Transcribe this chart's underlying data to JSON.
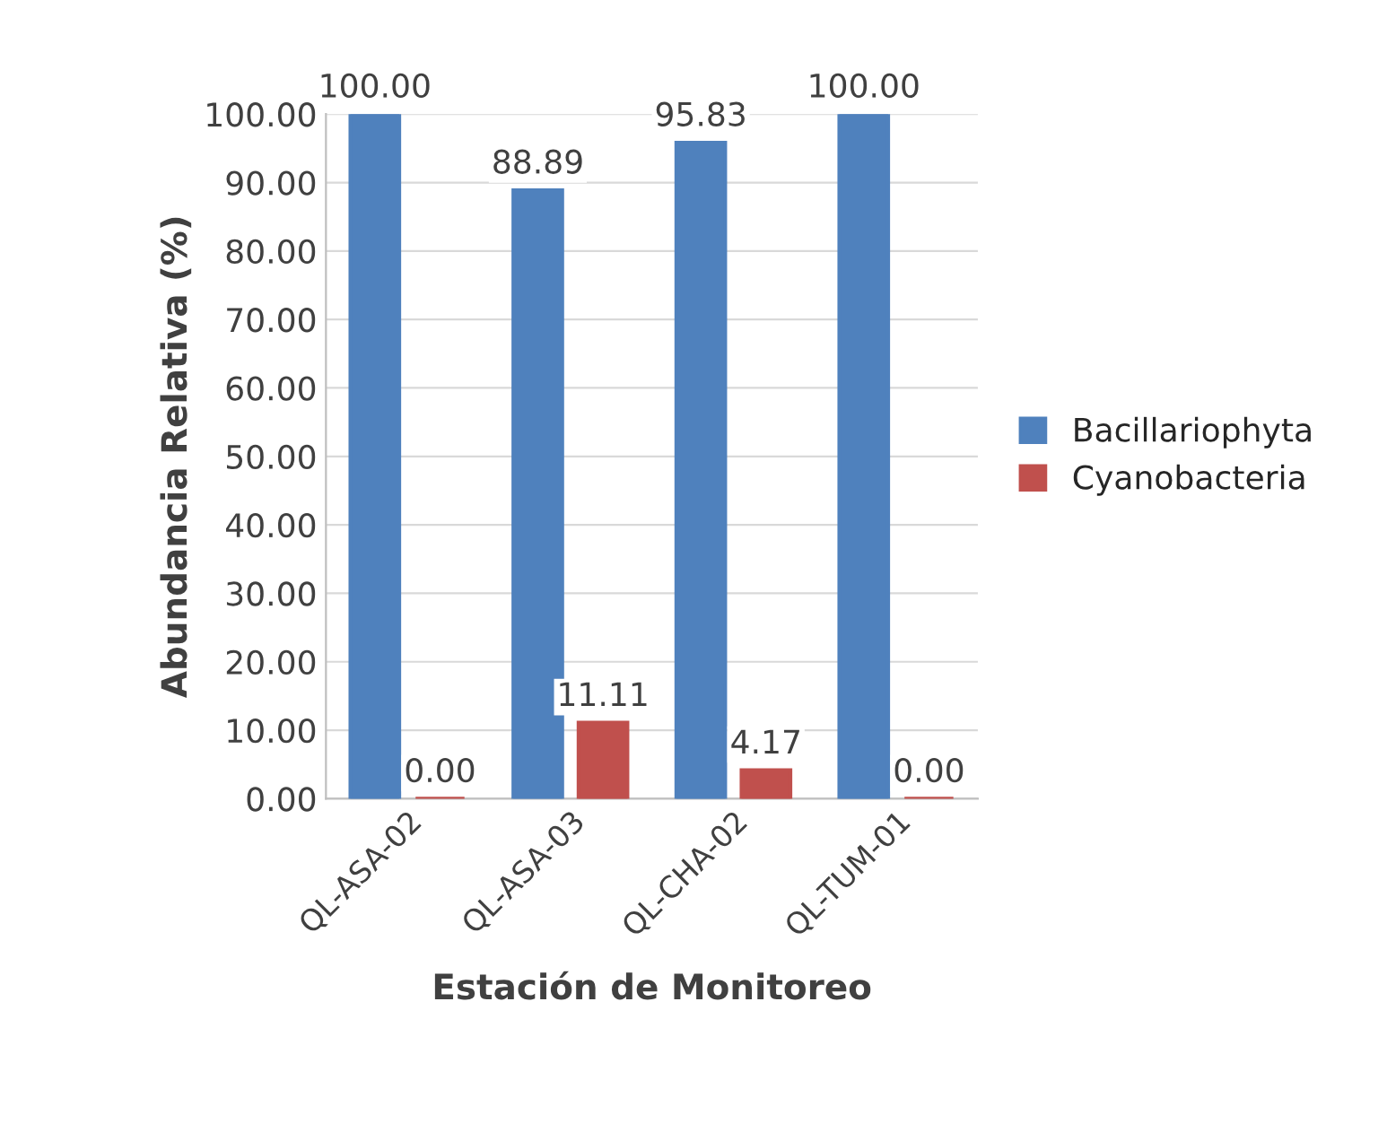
{
  "chart_data": {
    "type": "bar",
    "xlabel": "Estación de Monitoreo",
    "ylabel": "Abundancia Relativa (%)",
    "categories": [
      "QL-ASA-02",
      "QL-ASA-03",
      "QL-CHA-02",
      "QL-TUM-01"
    ],
    "series": [
      {
        "name": "Bacillariophyta",
        "color": "#4f81bd",
        "values": [
          100.0,
          88.89,
          95.83,
          100.0
        ],
        "value_labels": [
          "100.00",
          "88.89",
          "95.83",
          "100.00"
        ]
      },
      {
        "name": "Cyanobacteria",
        "color": "#c0504d",
        "values": [
          0.0,
          11.11,
          4.17,
          0.0
        ],
        "value_labels": [
          "0.00",
          "11.11",
          "4.17",
          "0.00"
        ]
      }
    ],
    "ylim": [
      0,
      100
    ],
    "yticks": [
      {
        "value": 0,
        "label": "0.00"
      },
      {
        "value": 10,
        "label": "10.00"
      },
      {
        "value": 20,
        "label": "20.00"
      },
      {
        "value": 30,
        "label": "30.00"
      },
      {
        "value": 40,
        "label": "40.00"
      },
      {
        "value": 50,
        "label": "50.00"
      },
      {
        "value": 60,
        "label": "60.00"
      },
      {
        "value": 70,
        "label": "70.00"
      },
      {
        "value": 80,
        "label": "80.00"
      },
      {
        "value": 90,
        "label": "90.00"
      },
      {
        "value": 100,
        "label": "100.00"
      }
    ],
    "grid": "y",
    "legend": "right"
  }
}
